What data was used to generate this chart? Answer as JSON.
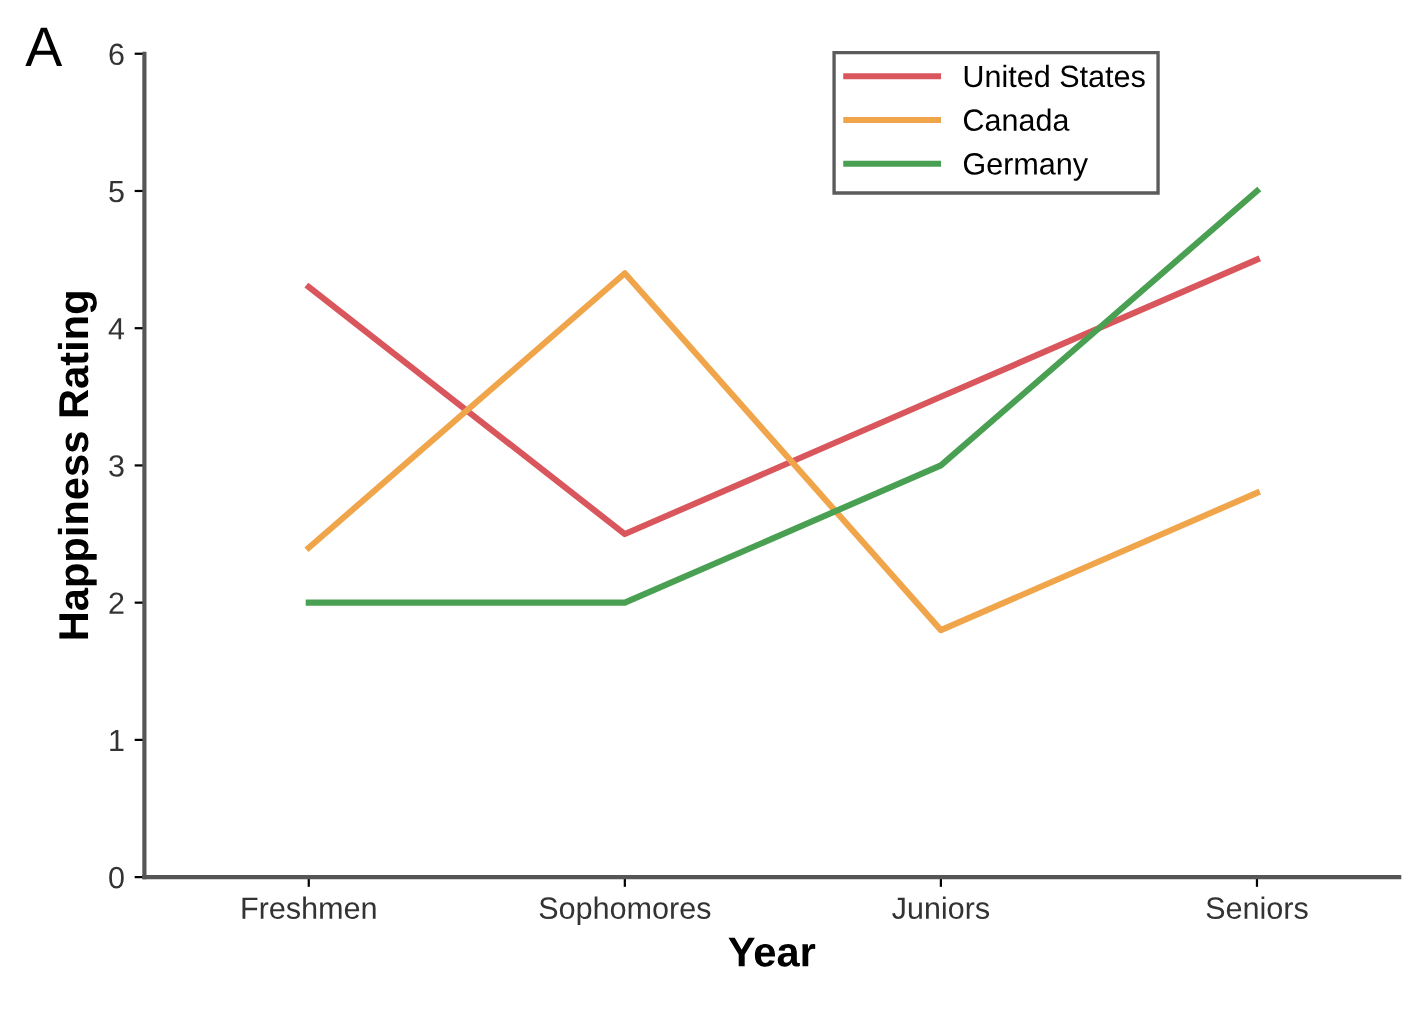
{
  "chart_data": {
    "type": "line",
    "xlabel": "Year",
    "ylabel": "Happiness Rating",
    "annotations": [
      "A"
    ],
    "categories": [
      "Freshmen",
      "Sophomores",
      "Juniors",
      "Seniors"
    ],
    "series": [
      {
        "name": "United States",
        "color": "#d9575c",
        "values": [
          4.3,
          2.5,
          3.5,
          4.5
        ]
      },
      {
        "name": "Canada",
        "color": "#f0a54a",
        "values": [
          2.4,
          4.4,
          1.8,
          2.8
        ]
      },
      {
        "name": "Germany",
        "color": "#4aa052",
        "values": [
          2,
          2,
          3,
          5
        ]
      }
    ],
    "ylim": [
      0,
      6
    ],
    "yticks": [
      0,
      1,
      2,
      3,
      4,
      5,
      6
    ],
    "grid": false,
    "legend": "top right",
    "marker": "none",
    "line_style": "solid"
  }
}
